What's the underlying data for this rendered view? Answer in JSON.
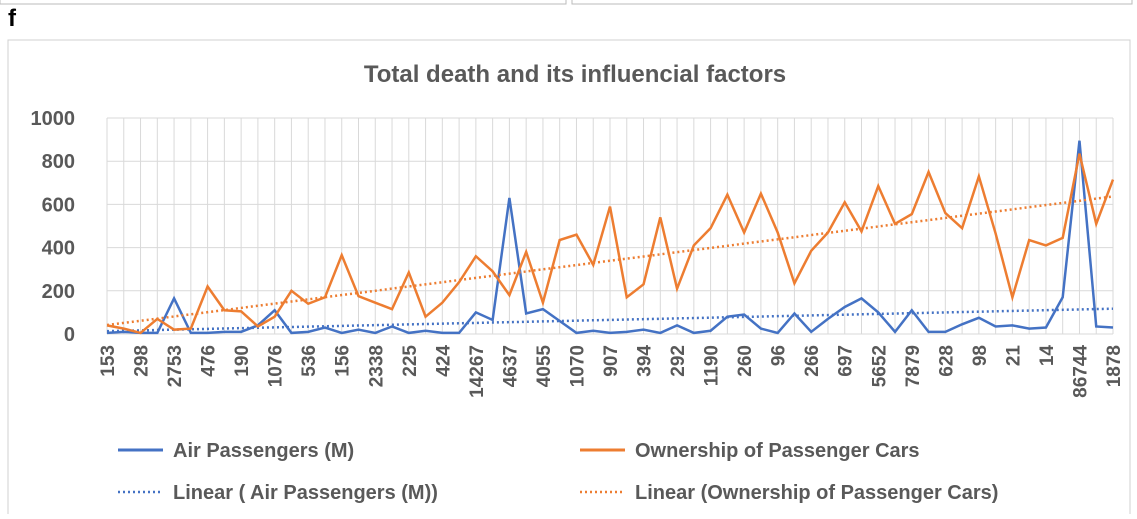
{
  "panel_label": "f",
  "chart_data": {
    "type": "line",
    "title": "Total death and its influencial factors",
    "categories": [
      "153",
      null,
      "298",
      null,
      "2753",
      null,
      "476",
      null,
      "190",
      null,
      "1076",
      null,
      "536",
      null,
      "156",
      null,
      "2338",
      null,
      "225",
      null,
      "424",
      null,
      "14267",
      null,
      "4637",
      null,
      "4055",
      null,
      "1070",
      null,
      "907",
      null,
      "394",
      null,
      "292",
      null,
      "1190",
      null,
      "260",
      null,
      "96",
      null,
      "266",
      null,
      "697",
      null,
      "5652",
      null,
      "7879",
      null,
      "628",
      null,
      "98",
      null,
      "21",
      null,
      "14",
      null,
      "86744",
      null,
      "1878"
    ],
    "series": [
      {
        "name": "Air Passengers (M)",
        "color": "#4472c4",
        "trendline": {
          "name": "Linear ( Air Passengers (M))",
          "style": "dotted"
        },
        "values": [
          5,
          10,
          5,
          5,
          165,
          5,
          5,
          10,
          10,
          40,
          110,
          5,
          10,
          30,
          5,
          20,
          5,
          35,
          5,
          15,
          5,
          5,
          100,
          65,
          630,
          95,
          115,
          60,
          5,
          15,
          5,
          10,
          20,
          5,
          40,
          5,
          15,
          80,
          90,
          25,
          5,
          95,
          10,
          70,
          125,
          165,
          100,
          10,
          110,
          10,
          10,
          45,
          75,
          35,
          40,
          25,
          30,
          170,
          895,
          35,
          30
        ]
      },
      {
        "name": "Ownership of Passenger Cars",
        "color": "#ed7d31",
        "trendline": {
          "name": "Linear (Ownership of Passenger Cars)",
          "style": "dotted"
        },
        "values": [
          40,
          25,
          5,
          70,
          20,
          25,
          220,
          110,
          105,
          35,
          80,
          200,
          140,
          170,
          365,
          175,
          145,
          115,
          285,
          80,
          145,
          240,
          360,
          290,
          180,
          380,
          145,
          435,
          460,
          320,
          590,
          170,
          230,
          540,
          210,
          410,
          490,
          645,
          470,
          650,
          470,
          235,
          385,
          470,
          610,
          475,
          685,
          510,
          555,
          750,
          560,
          490,
          730,
          465,
          170,
          435,
          410,
          445,
          835,
          510,
          715
        ]
      }
    ],
    "ylim": [
      0,
      1000
    ],
    "yticks": [
      0,
      200,
      400,
      600,
      800,
      1000
    ],
    "grid": true,
    "legend": "bottom"
  }
}
